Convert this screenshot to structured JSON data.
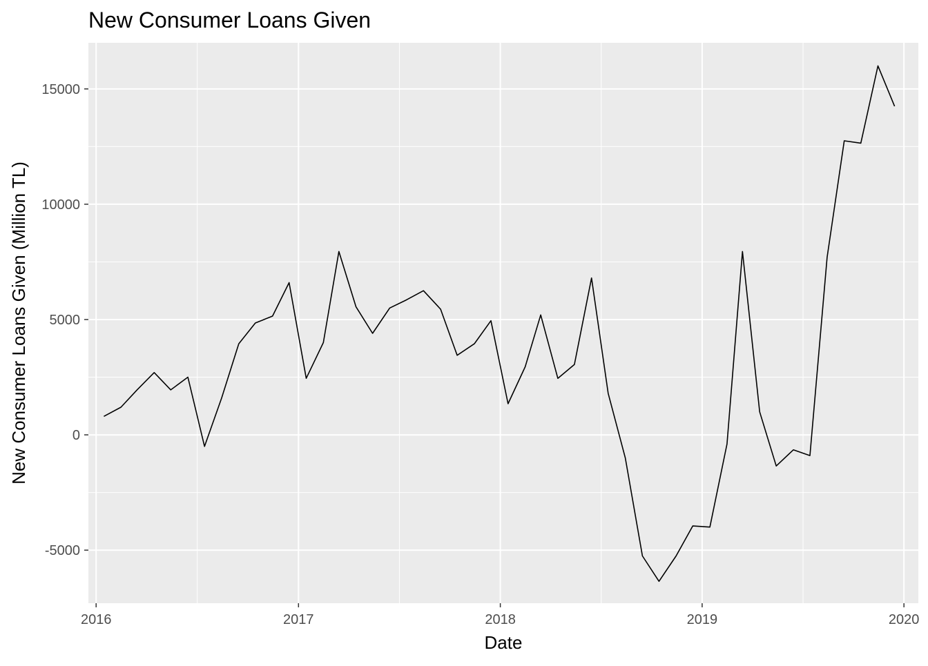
{
  "chart_data": {
    "type": "line",
    "title": "New Consumer Loans Given",
    "xlabel": "Date",
    "ylabel": "New Consumer Loans Given (Million TL)",
    "x_is_date": true,
    "xlim": [
      "2015-12-18",
      "2020-01-27"
    ],
    "ylim": [
      -7300,
      17000
    ],
    "x_ticks": [
      "2016-01-01",
      "2017-01-01",
      "2018-01-01",
      "2019-01-01",
      "2020-01-01"
    ],
    "x_tick_labels": [
      "2016",
      "2017",
      "2018",
      "2019",
      "2020"
    ],
    "y_ticks": [
      -5000,
      0,
      5000,
      10000,
      15000
    ],
    "y_tick_labels": [
      "-5000",
      "0",
      "5000",
      "10000",
      "15000"
    ],
    "grid": true,
    "legend": "none",
    "colors": {
      "panel": "#ebebeb",
      "grid": "#ffffff",
      "line": "#000000",
      "tick_text": "#4d4d4d"
    },
    "series": [
      {
        "x": [
          "2016-01-15",
          "2016-02-15",
          "2016-03-15",
          "2016-04-15",
          "2016-05-15",
          "2016-06-15",
          "2016-07-15",
          "2016-08-15",
          "2016-09-15",
          "2016-10-15",
          "2016-11-15",
          "2016-12-15",
          "2017-01-15",
          "2017-02-15",
          "2017-03-15",
          "2017-04-15",
          "2017-05-15",
          "2017-06-15",
          "2017-07-15",
          "2017-08-15",
          "2017-09-15",
          "2017-10-15",
          "2017-11-15",
          "2017-12-15",
          "2018-01-15",
          "2018-02-15",
          "2018-03-15",
          "2018-04-15",
          "2018-05-15",
          "2018-06-15",
          "2018-07-15",
          "2018-08-15",
          "2018-09-15",
          "2018-10-15",
          "2018-11-15",
          "2018-12-15",
          "2019-01-15",
          "2019-02-15",
          "2019-03-15",
          "2019-04-15",
          "2019-05-15",
          "2019-06-15",
          "2019-07-15",
          "2019-08-15",
          "2019-09-15",
          "2019-10-15",
          "2019-11-15",
          "2019-12-15"
        ],
        "values": [
          800,
          1200,
          1950,
          2700,
          1950,
          2500,
          -500,
          1600,
          3950,
          4850,
          5150,
          6600,
          2450,
          4000,
          7950,
          5550,
          4400,
          5500,
          5850,
          6250,
          5450,
          3450,
          3950,
          4950,
          1350,
          2950,
          5200,
          2450,
          3050,
          6800,
          1800,
          -1000,
          -5250,
          -6350,
          -5250,
          -3950,
          -4000,
          -400,
          7950,
          1000,
          -1350,
          -650,
          -900,
          7700,
          12750,
          12650,
          16000,
          14250
        ]
      }
    ]
  }
}
